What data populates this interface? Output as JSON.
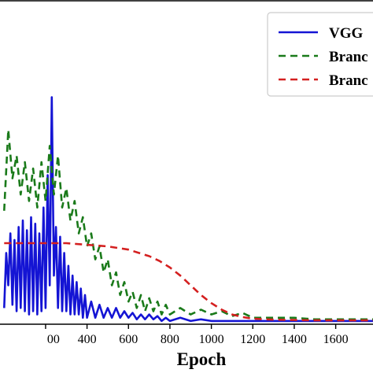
{
  "chart_data": {
    "type": "line",
    "xlabel": "Epoch",
    "ylabel": "",
    "xlim": [
      -20,
      1780
    ],
    "ylim": [
      0,
      1
    ],
    "xticks": [
      "200",
      "400",
      "600",
      "800",
      "1000",
      "1200",
      "1400",
      "1600"
    ],
    "xtick_labels": [
      "00",
      "400",
      "600",
      "800",
      "1000",
      "1200",
      "1400",
      "1600"
    ],
    "grid": false,
    "legend_placement": "top-right",
    "legend": [
      "VGG",
      "Branc",
      "Branc"
    ],
    "series": [
      {
        "name": "VGG",
        "color": "#1414d4",
        "dash": "solid",
        "x": [
          0,
          10,
          20,
          30,
          40,
          50,
          60,
          70,
          80,
          90,
          100,
          110,
          120,
          130,
          140,
          150,
          160,
          170,
          180,
          190,
          200,
          210,
          220,
          230,
          240,
          250,
          260,
          270,
          280,
          290,
          300,
          310,
          320,
          330,
          340,
          350,
          360,
          370,
          380,
          390,
          400,
          420,
          440,
          460,
          480,
          500,
          520,
          540,
          560,
          580,
          600,
          620,
          640,
          660,
          680,
          700,
          720,
          740,
          760,
          780,
          800,
          850,
          900,
          950,
          1000,
          1100,
          1200,
          1300,
          1400,
          1500,
          1600,
          1700,
          1780
        ],
        "y": [
          0.05,
          0.22,
          0.12,
          0.28,
          0.06,
          0.26,
          0.04,
          0.3,
          0.05,
          0.32,
          0.04,
          0.29,
          0.03,
          0.33,
          0.04,
          0.31,
          0.03,
          0.28,
          0.04,
          0.36,
          0.05,
          0.46,
          0.12,
          0.7,
          0.15,
          0.3,
          0.05,
          0.27,
          0.04,
          0.22,
          0.04,
          0.18,
          0.03,
          0.15,
          0.03,
          0.13,
          0.03,
          0.11,
          0.02,
          0.09,
          0.02,
          0.07,
          0.02,
          0.06,
          0.02,
          0.05,
          0.02,
          0.05,
          0.02,
          0.04,
          0.02,
          0.035,
          0.015,
          0.03,
          0.015,
          0.03,
          0.015,
          0.025,
          0.01,
          0.02,
          0.01,
          0.02,
          0.01,
          0.015,
          0.01,
          0.01,
          0.01,
          0.01,
          0.01,
          0.01,
          0.01,
          0.01,
          0.01
        ]
      },
      {
        "name": "Branc",
        "color": "#1a7a1a",
        "dash": "dashed",
        "x": [
          0,
          20,
          40,
          60,
          80,
          100,
          120,
          140,
          160,
          180,
          200,
          220,
          240,
          260,
          280,
          300,
          320,
          340,
          360,
          380,
          400,
          420,
          440,
          460,
          480,
          500,
          520,
          540,
          560,
          580,
          600,
          620,
          640,
          660,
          680,
          700,
          720,
          740,
          760,
          780,
          800,
          850,
          900,
          950,
          1000,
          1050,
          1100,
          1150,
          1200,
          1300,
          1400,
          1500,
          1600,
          1700,
          1780
        ],
        "y": [
          0.35,
          0.6,
          0.45,
          0.52,
          0.4,
          0.5,
          0.38,
          0.48,
          0.36,
          0.5,
          0.38,
          0.55,
          0.4,
          0.52,
          0.36,
          0.42,
          0.32,
          0.38,
          0.28,
          0.33,
          0.24,
          0.28,
          0.2,
          0.24,
          0.16,
          0.2,
          0.12,
          0.16,
          0.09,
          0.13,
          0.07,
          0.1,
          0.05,
          0.09,
          0.04,
          0.08,
          0.04,
          0.07,
          0.03,
          0.06,
          0.03,
          0.05,
          0.03,
          0.045,
          0.03,
          0.04,
          0.025,
          0.035,
          0.02,
          0.02,
          0.02,
          0.015,
          0.015,
          0.015,
          0.015
        ]
      },
      {
        "name": "Branc",
        "color": "#d42020",
        "dash": "dashed",
        "x": [
          0,
          100,
          200,
          300,
          400,
          500,
          600,
          650,
          700,
          750,
          800,
          850,
          900,
          950,
          1000,
          1050,
          1100,
          1150,
          1200,
          1300,
          1400,
          1500,
          1600,
          1700,
          1780
        ],
        "y": [
          0.25,
          0.25,
          0.25,
          0.25,
          0.245,
          0.24,
          0.23,
          0.22,
          0.21,
          0.195,
          0.175,
          0.15,
          0.12,
          0.09,
          0.065,
          0.045,
          0.03,
          0.022,
          0.017,
          0.014,
          0.013,
          0.012,
          0.012,
          0.012,
          0.012
        ]
      }
    ]
  }
}
